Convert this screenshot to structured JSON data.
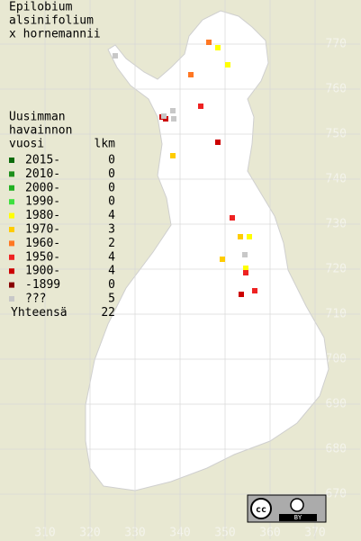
{
  "title": [
    "Epilobium",
    "alsinifolium",
    "x hornemannii"
  ],
  "legend": {
    "header": [
      "Uusimman",
      "havainnon",
      "vuosi"
    ],
    "count_header": "lkm",
    "entries": [
      {
        "label": "2015-",
        "count": 0,
        "color": "#0b6b0b",
        "points": []
      },
      {
        "label": "2010-",
        "count": 0,
        "color": "#1c8f1c",
        "points": []
      },
      {
        "label": "2000-",
        "count": 0,
        "color": "#22b022",
        "points": []
      },
      {
        "label": "1990-",
        "count": 0,
        "color": "#3ee03e",
        "points": []
      },
      {
        "label": "1980-",
        "count": 4,
        "color": "#ffff00",
        "points": [
          [
            348.4,
            769.2
          ],
          [
            350.6,
            765.4
          ],
          [
            355.4,
            727.2
          ],
          [
            354.6,
            720.2
          ]
        ]
      },
      {
        "label": "1970-",
        "count": 3,
        "color": "#ffcc00",
        "points": [
          [
            338.4,
            745.2
          ],
          [
            353.4,
            727.2
          ],
          [
            349.4,
            722.2
          ]
        ]
      },
      {
        "label": "1960-",
        "count": 2,
        "color": "#ff7722",
        "points": [
          [
            346.4,
            770.4
          ],
          [
            342.4,
            763.2
          ]
        ]
      },
      {
        "label": "1950-",
        "count": 4,
        "color": "#ee2222",
        "points": [
          [
            344.6,
            756.2
          ],
          [
            351.6,
            731.4
          ],
          [
            356.6,
            715.2
          ],
          [
            354.6,
            719.2
          ]
        ]
      },
      {
        "label": "1900-",
        "count": 4,
        "color": "#cc0000",
        "points": [
          [
            336.0,
            753.8
          ],
          [
            336.8,
            753.4
          ],
          [
            348.4,
            748.2
          ],
          [
            353.6,
            714.4
          ]
        ]
      },
      {
        "label": "-1899",
        "count": 0,
        "color": "#880000",
        "points": []
      },
      {
        "label": "???",
        "count": 5,
        "color": "#c8c8c8",
        "points": [
          [
            325.6,
            767.4
          ],
          [
            338.4,
            755.2
          ],
          [
            338.6,
            753.4
          ],
          [
            354.4,
            723.2
          ],
          [
            336.4,
            754.0
          ]
        ]
      }
    ],
    "total_label": "Yhteensä",
    "total": 22
  },
  "xticks": [
    310,
    320,
    330,
    340,
    350,
    360,
    370
  ],
  "yticks": [
    670,
    680,
    690,
    700,
    710,
    720,
    730,
    740,
    750,
    760,
    770
  ],
  "xlim": [
    300,
    380
  ],
  "ylim": [
    660,
    780
  ],
  "license": {
    "cc": "cc",
    "by": "BY"
  }
}
